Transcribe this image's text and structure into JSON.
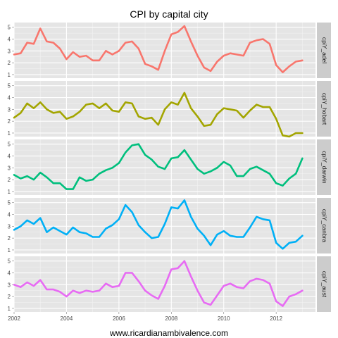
{
  "chart_data": {
    "type": "line",
    "title": "CPI by capital city",
    "caption": "www.ricardianambivalence.com",
    "xlabel": "",
    "ylabel": "",
    "xlim": [
      2002,
      2013.5
    ],
    "ylim": [
      0.7,
      5.4
    ],
    "x_ticks": [
      "2002",
      "2004",
      "2006",
      "2008",
      "2010",
      "2012"
    ],
    "y_ticks": [
      "1",
      "2",
      "3",
      "4",
      "5"
    ],
    "grid": true,
    "facets": [
      {
        "name": "cpiY_adel",
        "color": "#F8766D",
        "points": [
          [
            2002.0,
            2.7
          ],
          [
            2002.25,
            2.8
          ],
          [
            2002.5,
            3.7
          ],
          [
            2002.75,
            3.6
          ],
          [
            2003.0,
            4.9
          ],
          [
            2003.25,
            3.8
          ],
          [
            2003.5,
            3.7
          ],
          [
            2003.75,
            3.2
          ],
          [
            2004.0,
            2.3
          ],
          [
            2004.25,
            2.9
          ],
          [
            2004.5,
            2.5
          ],
          [
            2004.75,
            2.6
          ],
          [
            2005.0,
            2.2
          ],
          [
            2005.25,
            2.2
          ],
          [
            2005.5,
            3.0
          ],
          [
            2005.75,
            2.7
          ],
          [
            2006.0,
            3.0
          ],
          [
            2006.25,
            3.7
          ],
          [
            2006.5,
            3.8
          ],
          [
            2006.75,
            3.2
          ],
          [
            2007.0,
            1.9
          ],
          [
            2007.25,
            1.7
          ],
          [
            2007.5,
            1.4
          ],
          [
            2007.75,
            3.0
          ],
          [
            2008.0,
            4.4
          ],
          [
            2008.25,
            4.6
          ],
          [
            2008.5,
            5.1
          ],
          [
            2008.75,
            3.8
          ],
          [
            2009.0,
            2.6
          ],
          [
            2009.25,
            1.6
          ],
          [
            2009.5,
            1.3
          ],
          [
            2009.75,
            2.1
          ],
          [
            2010.0,
            2.6
          ],
          [
            2010.25,
            2.8
          ],
          [
            2010.5,
            2.7
          ],
          [
            2010.75,
            2.6
          ],
          [
            2011.0,
            3.7
          ],
          [
            2011.25,
            3.9
          ],
          [
            2011.5,
            4.0
          ],
          [
            2011.75,
            3.6
          ],
          [
            2012.0,
            1.8
          ],
          [
            2012.25,
            1.2
          ],
          [
            2012.5,
            1.7
          ],
          [
            2012.75,
            2.1
          ],
          [
            2013.0,
            2.2
          ]
        ]
      },
      {
        "name": "cpiY_hobart",
        "color": "#A3A500",
        "points": [
          [
            2002.0,
            2.3
          ],
          [
            2002.25,
            2.7
          ],
          [
            2002.5,
            3.5
          ],
          [
            2002.75,
            3.1
          ],
          [
            2003.0,
            3.6
          ],
          [
            2003.25,
            3.0
          ],
          [
            2003.5,
            2.7
          ],
          [
            2003.75,
            2.8
          ],
          [
            2004.0,
            2.2
          ],
          [
            2004.25,
            2.4
          ],
          [
            2004.5,
            2.8
          ],
          [
            2004.75,
            3.4
          ],
          [
            2005.0,
            3.5
          ],
          [
            2005.25,
            3.1
          ],
          [
            2005.5,
            3.5
          ],
          [
            2005.75,
            2.9
          ],
          [
            2006.0,
            2.8
          ],
          [
            2006.25,
            3.6
          ],
          [
            2006.5,
            3.5
          ],
          [
            2006.75,
            2.4
          ],
          [
            2007.0,
            2.2
          ],
          [
            2007.25,
            2.3
          ],
          [
            2007.5,
            1.7
          ],
          [
            2007.75,
            3.0
          ],
          [
            2008.0,
            3.6
          ],
          [
            2008.25,
            3.4
          ],
          [
            2008.5,
            4.4
          ],
          [
            2008.75,
            3.1
          ],
          [
            2009.0,
            2.4
          ],
          [
            2009.25,
            1.6
          ],
          [
            2009.5,
            1.7
          ],
          [
            2009.75,
            2.6
          ],
          [
            2010.0,
            3.1
          ],
          [
            2010.25,
            3.0
          ],
          [
            2010.5,
            2.9
          ],
          [
            2010.75,
            2.3
          ],
          [
            2011.0,
            2.9
          ],
          [
            2011.25,
            3.4
          ],
          [
            2011.5,
            3.2
          ],
          [
            2011.75,
            3.2
          ],
          [
            2012.0,
            2.2
          ],
          [
            2012.25,
            0.8
          ],
          [
            2012.5,
            0.7
          ],
          [
            2012.75,
            1.0
          ],
          [
            2013.0,
            1.0
          ]
        ]
      },
      {
        "name": "cpiY_darwin",
        "color": "#00BF7D",
        "points": [
          [
            2002.0,
            2.4
          ],
          [
            2002.25,
            2.1
          ],
          [
            2002.5,
            2.3
          ],
          [
            2002.75,
            2.0
          ],
          [
            2003.0,
            2.6
          ],
          [
            2003.25,
            2.2
          ],
          [
            2003.5,
            1.7
          ],
          [
            2003.75,
            1.7
          ],
          [
            2004.0,
            1.2
          ],
          [
            2004.25,
            1.2
          ],
          [
            2004.5,
            2.2
          ],
          [
            2004.75,
            1.9
          ],
          [
            2005.0,
            2.0
          ],
          [
            2005.25,
            2.5
          ],
          [
            2005.5,
            2.8
          ],
          [
            2005.75,
            3.0
          ],
          [
            2006.0,
            3.4
          ],
          [
            2006.25,
            4.3
          ],
          [
            2006.5,
            4.9
          ],
          [
            2006.75,
            5.0
          ],
          [
            2007.0,
            4.1
          ],
          [
            2007.25,
            3.7
          ],
          [
            2007.5,
            3.1
          ],
          [
            2007.75,
            2.9
          ],
          [
            2008.0,
            3.8
          ],
          [
            2008.25,
            3.9
          ],
          [
            2008.5,
            4.5
          ],
          [
            2008.75,
            3.7
          ],
          [
            2009.0,
            2.9
          ],
          [
            2009.25,
            2.5
          ],
          [
            2009.5,
            2.7
          ],
          [
            2009.75,
            3.0
          ],
          [
            2010.0,
            3.5
          ],
          [
            2010.25,
            3.2
          ],
          [
            2010.5,
            2.3
          ],
          [
            2010.75,
            2.3
          ],
          [
            2011.0,
            2.9
          ],
          [
            2011.25,
            3.1
          ],
          [
            2011.5,
            2.8
          ],
          [
            2011.75,
            2.5
          ],
          [
            2012.0,
            1.7
          ],
          [
            2012.25,
            1.5
          ],
          [
            2012.5,
            2.1
          ],
          [
            2012.75,
            2.5
          ],
          [
            2013.0,
            3.8
          ]
        ]
      },
      {
        "name": "cpiY_canbra",
        "color": "#00B0F6",
        "points": [
          [
            2002.0,
            2.7
          ],
          [
            2002.25,
            3.0
          ],
          [
            2002.5,
            3.5
          ],
          [
            2002.75,
            3.2
          ],
          [
            2003.0,
            3.7
          ],
          [
            2003.25,
            2.5
          ],
          [
            2003.5,
            2.9
          ],
          [
            2003.75,
            2.6
          ],
          [
            2004.0,
            2.3
          ],
          [
            2004.25,
            2.9
          ],
          [
            2004.5,
            2.5
          ],
          [
            2004.75,
            2.4
          ],
          [
            2005.0,
            2.1
          ],
          [
            2005.25,
            2.1
          ],
          [
            2005.5,
            2.8
          ],
          [
            2005.75,
            3.1
          ],
          [
            2006.0,
            3.6
          ],
          [
            2006.25,
            4.8
          ],
          [
            2006.5,
            4.2
          ],
          [
            2006.75,
            3.1
          ],
          [
            2007.0,
            2.5
          ],
          [
            2007.25,
            2.0
          ],
          [
            2007.5,
            2.1
          ],
          [
            2007.75,
            3.2
          ],
          [
            2008.0,
            4.6
          ],
          [
            2008.25,
            4.5
          ],
          [
            2008.5,
            5.2
          ],
          [
            2008.75,
            3.8
          ],
          [
            2009.0,
            2.8
          ],
          [
            2009.25,
            2.2
          ],
          [
            2009.5,
            1.4
          ],
          [
            2009.75,
            2.3
          ],
          [
            2010.0,
            2.6
          ],
          [
            2010.25,
            2.2
          ],
          [
            2010.5,
            2.1
          ],
          [
            2010.75,
            2.1
          ],
          [
            2011.0,
            2.9
          ],
          [
            2011.25,
            3.8
          ],
          [
            2011.5,
            3.6
          ],
          [
            2011.75,
            3.5
          ],
          [
            2012.0,
            1.6
          ],
          [
            2012.25,
            1.1
          ],
          [
            2012.5,
            1.6
          ],
          [
            2012.75,
            1.7
          ],
          [
            2013.0,
            2.2
          ]
        ]
      },
      {
        "name": "cpiY_aust",
        "color": "#E76BF3",
        "points": [
          [
            2002.0,
            3.0
          ],
          [
            2002.25,
            2.8
          ],
          [
            2002.5,
            3.2
          ],
          [
            2002.75,
            2.9
          ],
          [
            2003.0,
            3.4
          ],
          [
            2003.25,
            2.6
          ],
          [
            2003.5,
            2.6
          ],
          [
            2003.75,
            2.4
          ],
          [
            2004.0,
            2.0
          ],
          [
            2004.25,
            2.5
          ],
          [
            2004.5,
            2.3
          ],
          [
            2004.75,
            2.5
          ],
          [
            2005.0,
            2.4
          ],
          [
            2005.25,
            2.5
          ],
          [
            2005.5,
            3.1
          ],
          [
            2005.75,
            2.8
          ],
          [
            2006.0,
            2.9
          ],
          [
            2006.25,
            4.0
          ],
          [
            2006.5,
            4.0
          ],
          [
            2006.75,
            3.3
          ],
          [
            2007.0,
            2.5
          ],
          [
            2007.25,
            2.1
          ],
          [
            2007.5,
            1.8
          ],
          [
            2007.75,
            2.9
          ],
          [
            2008.0,
            4.3
          ],
          [
            2008.25,
            4.4
          ],
          [
            2008.5,
            5.0
          ],
          [
            2008.75,
            3.7
          ],
          [
            2009.0,
            2.5
          ],
          [
            2009.25,
            1.5
          ],
          [
            2009.5,
            1.3
          ],
          [
            2009.75,
            2.1
          ],
          [
            2010.0,
            2.9
          ],
          [
            2010.25,
            3.1
          ],
          [
            2010.5,
            2.8
          ],
          [
            2010.75,
            2.7
          ],
          [
            2011.0,
            3.3
          ],
          [
            2011.25,
            3.5
          ],
          [
            2011.5,
            3.4
          ],
          [
            2011.75,
            3.1
          ],
          [
            2012.0,
            1.6
          ],
          [
            2012.25,
            1.2
          ],
          [
            2012.5,
            2.0
          ],
          [
            2012.75,
            2.2
          ],
          [
            2013.0,
            2.5
          ]
        ]
      }
    ]
  }
}
